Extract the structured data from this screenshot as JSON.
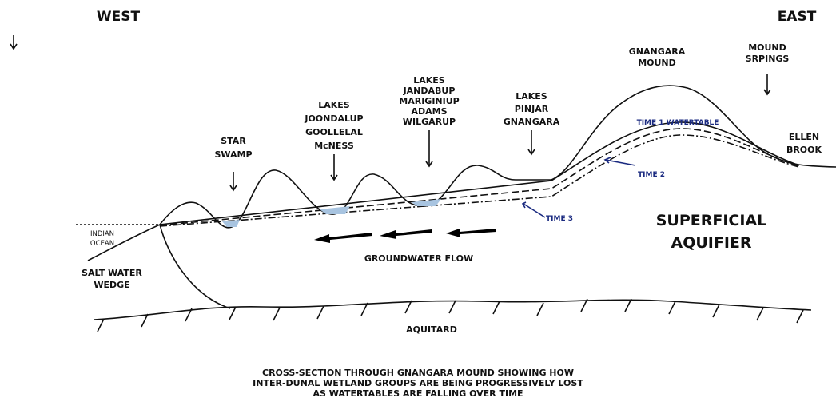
{
  "header": {
    "west": "WEST",
    "east": "EAST"
  },
  "labels": {
    "star_swamp": [
      "STAR",
      "SWAMP"
    ],
    "joondalup": [
      "LAKES",
      "JOONDALUP",
      "GOOLLELAL",
      "McNESS"
    ],
    "jandabup": [
      "LAKES",
      "JANDABUP",
      "MARIGINIUP",
      "ADAMS",
      "WILGARUP"
    ],
    "pinjar": [
      "LAKES",
      "PINJAR",
      "GNANGARA"
    ],
    "gnangara_mound": [
      "GNANGARA",
      "MOUND"
    ],
    "mound_springs": [
      "MOUND",
      "SRPINGS"
    ],
    "ellen_brook": [
      "ELLEN",
      "BROOK"
    ],
    "indian_ocean": [
      "INDIAN",
      "OCEAN"
    ],
    "salt_water_wedge": [
      "SALT WATER",
      "WEDGE"
    ],
    "superficial_aquifer": [
      "SUPERFICIAL",
      "AQUIFIER"
    ],
    "groundwater_flow": "GROUNDWATER FLOW",
    "aquitard": "AQUITARD"
  },
  "watertables": {
    "time1": "TIME 1 WATERTABLE",
    "time2": "TIME 2",
    "time3": "TIME 3"
  },
  "caption": [
    "CROSS-SECTION THROUGH GNANGARA MOUND SHOWING HOW",
    "INTER-DUNAL WETLAND GROUPS ARE BEING PROGRESSIVELY LOST",
    "AS WATERTABLES ARE FALLING OVER TIME"
  ]
}
